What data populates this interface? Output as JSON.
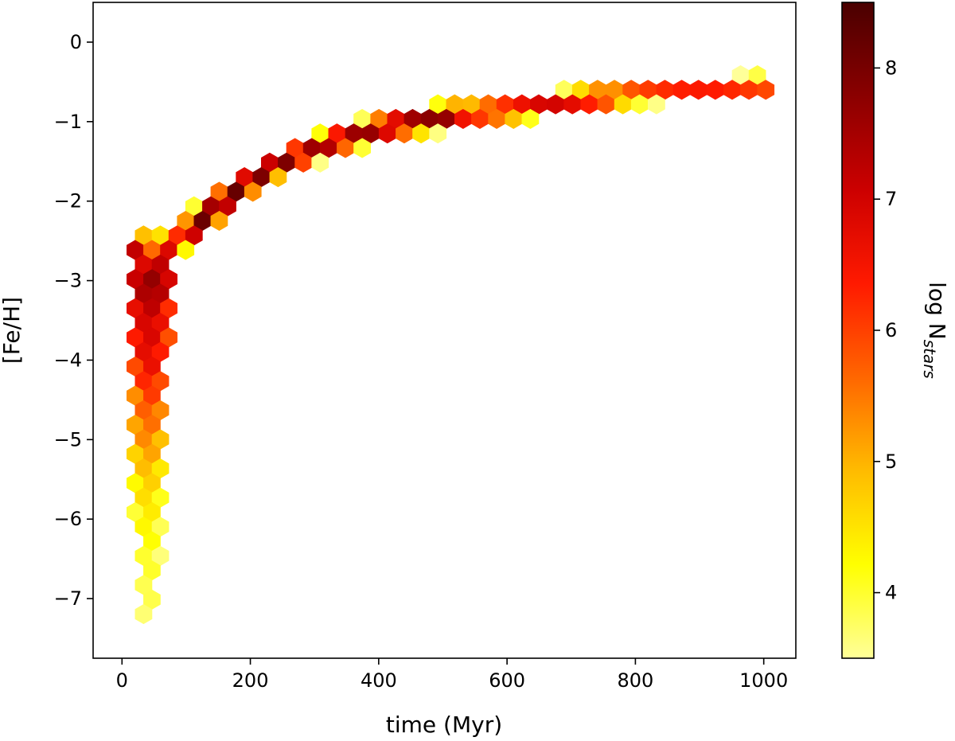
{
  "chart_data": {
    "type": "heatmap",
    "subtype": "hexbin",
    "xlabel": "time (Myr)",
    "ylabel": "[Fe/H]",
    "colorbar_label": "log N",
    "colorbar_label_sub": "stars",
    "xlim": [
      -45,
      1050
    ],
    "ylim": [
      -7.75,
      0.5
    ],
    "clim": [
      3.5,
      8.5
    ],
    "x_ticks": [
      0,
      200,
      400,
      600,
      800,
      1000
    ],
    "x_tick_labels": [
      "0",
      "200",
      "400",
      "600",
      "800",
      "1000"
    ],
    "y_ticks": [
      0,
      -1,
      -2,
      -3,
      -4,
      -5,
      -6,
      -7
    ],
    "y_tick_labels": [
      "0",
      "−1",
      "−2",
      "−3",
      "−4",
      "−5",
      "−6",
      "−7"
    ],
    "cbar_ticks": [
      4,
      5,
      6,
      7,
      8
    ],
    "cbar_tick_labels": [
      "4",
      "5",
      "6",
      "7",
      "8"
    ],
    "colormap": "afmhot_r",
    "colormap_stops": [
      "#ffff99",
      "#ffff00",
      "#ffbb00",
      "#ff6600",
      "#ff1a00",
      "#cc0000",
      "#8b0000",
      "#4a0000"
    ],
    "grid": false,
    "ridge": [
      {
        "t": 20,
        "feh": -2.6
      },
      {
        "t": 40,
        "feh": -2.8
      },
      {
        "t": 60,
        "feh": -2.8
      },
      {
        "t": 80,
        "feh": -2.6
      },
      {
        "t": 100,
        "feh": -2.4
      },
      {
        "t": 130,
        "feh": -2.2
      },
      {
        "t": 160,
        "feh": -2.0
      },
      {
        "t": 200,
        "feh": -1.75
      },
      {
        "t": 250,
        "feh": -1.5
      },
      {
        "t": 300,
        "feh": -1.35
      },
      {
        "t": 350,
        "feh": -1.2
      },
      {
        "t": 400,
        "feh": -1.1
      },
      {
        "t": 450,
        "feh": -1.0
      },
      {
        "t": 500,
        "feh": -0.95
      },
      {
        "t": 550,
        "feh": -0.9
      },
      {
        "t": 600,
        "feh": -0.85
      },
      {
        "t": 700,
        "feh": -0.75
      },
      {
        "t": 800,
        "feh": -0.65
      },
      {
        "t": 900,
        "feh": -0.6
      },
      {
        "t": 1000,
        "feh": -0.55
      }
    ],
    "early_column": [
      {
        "feh": -2.5,
        "t_range": [
          15,
          70
        ],
        "peak": 5.0
      },
      {
        "feh": -3.0,
        "t_range": [
          10,
          80
        ],
        "peak": 7.8
      },
      {
        "feh": -3.5,
        "t_range": [
          10,
          75
        ],
        "peak": 7.0
      },
      {
        "feh": -4.0,
        "t_range": [
          15,
          70
        ],
        "peak": 6.8
      },
      {
        "feh": -4.5,
        "t_range": [
          15,
          70
        ],
        "peak": 6.0
      },
      {
        "feh": -5.0,
        "t_range": [
          10,
          70
        ],
        "peak": 5.4
      },
      {
        "feh": -5.5,
        "t_range": [
          10,
          70
        ],
        "peak": 4.8
      },
      {
        "feh": -6.0,
        "t_range": [
          10,
          70
        ],
        "peak": 4.4
      },
      {
        "feh": -6.5,
        "t_range": [
          15,
          70
        ],
        "peak": 4.1
      },
      {
        "feh": -7.0,
        "t_range": [
          15,
          70
        ],
        "peak": 3.9
      },
      {
        "feh": -7.4,
        "t_range": [
          15,
          55
        ],
        "peak": 3.7
      }
    ]
  }
}
